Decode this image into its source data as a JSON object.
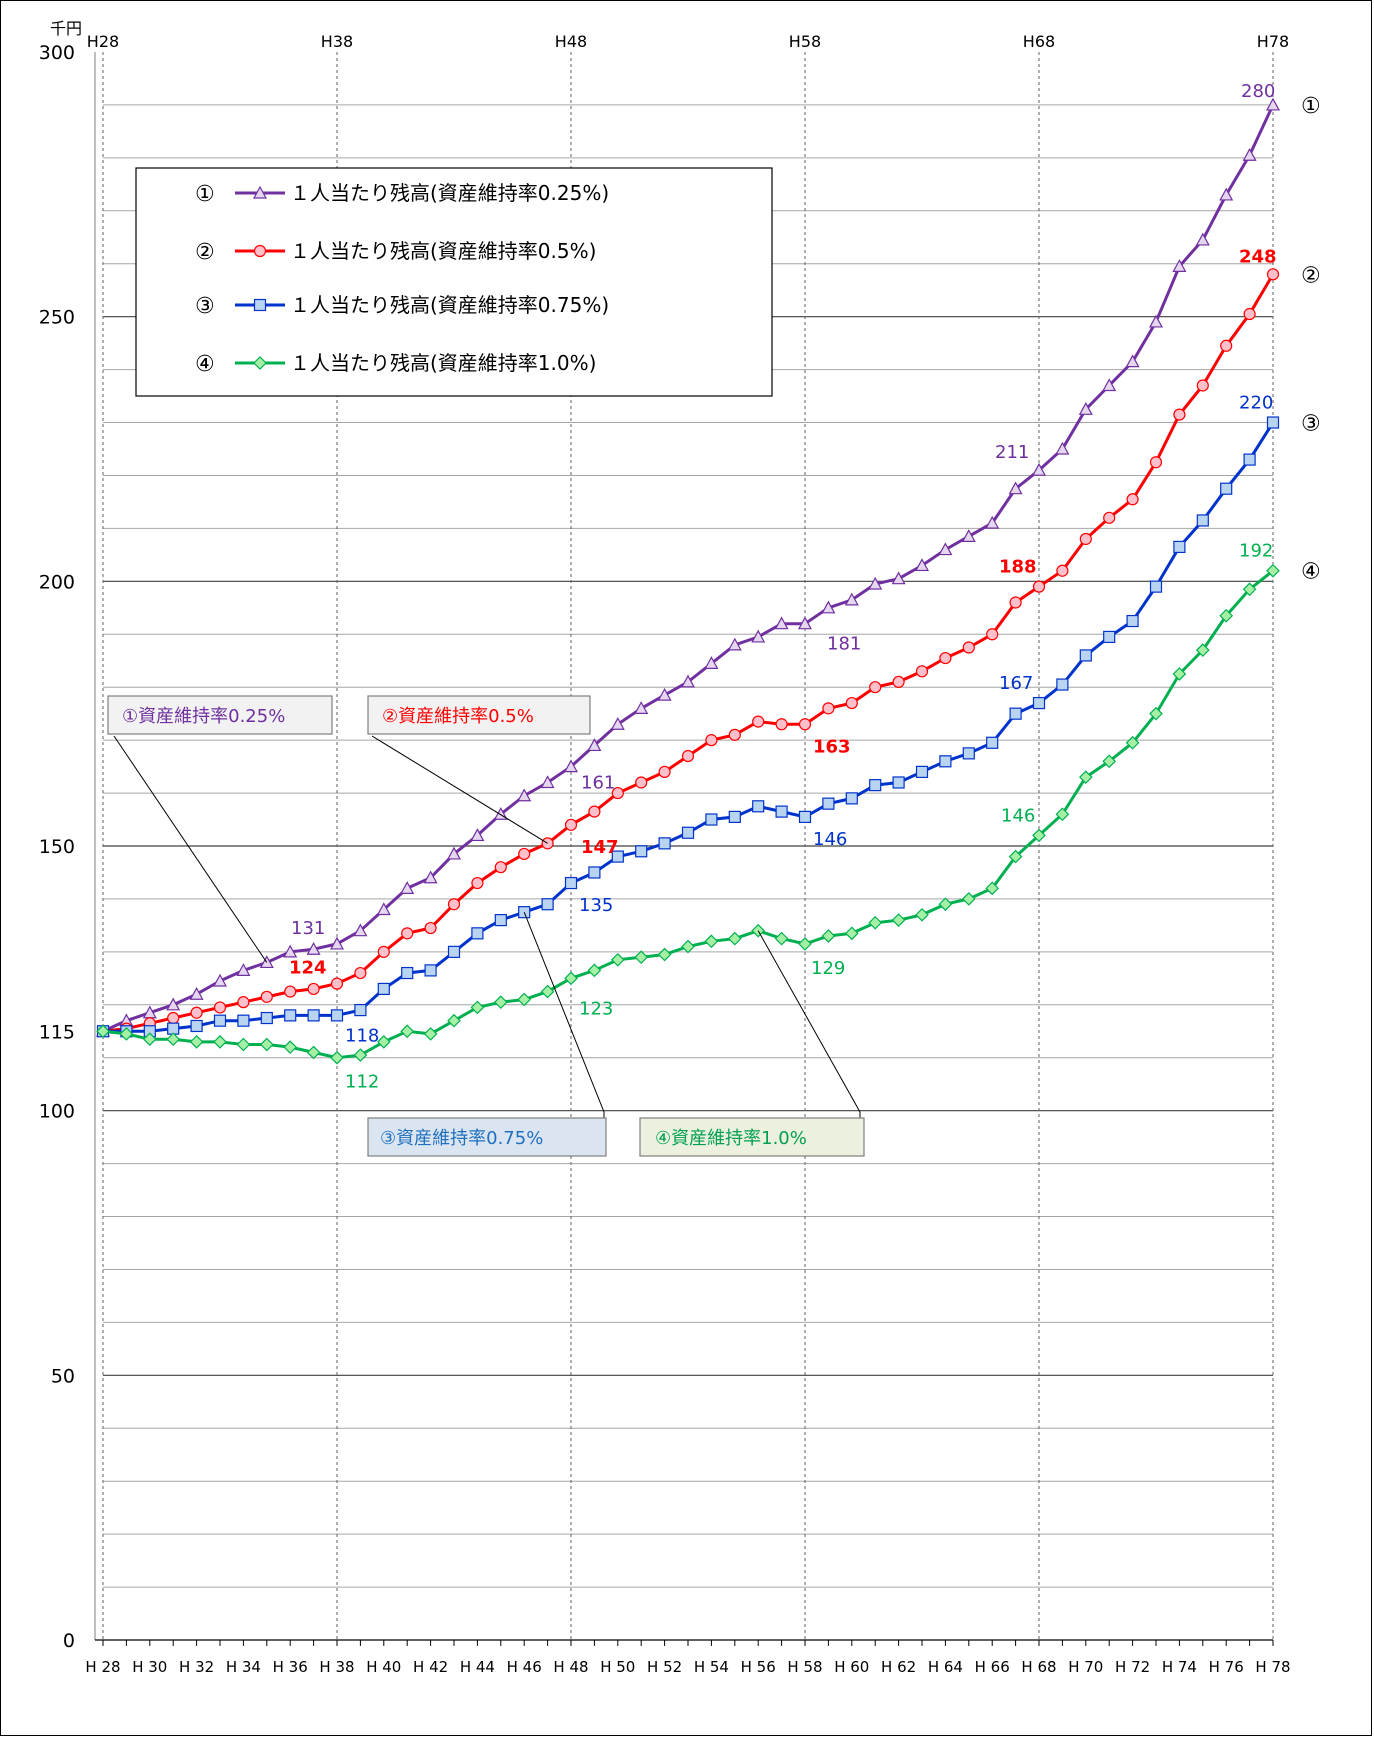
{
  "chart_data": {
    "type": "line",
    "unit_label": "千円",
    "ylim": [
      0,
      300
    ],
    "yticks": [
      0,
      50,
      100,
      150,
      200,
      250,
      300
    ],
    "ytick_extra": 115,
    "x": [
      "H28",
      "H29",
      "H30",
      "H31",
      "H32",
      "H33",
      "H34",
      "H35",
      "H36",
      "H37",
      "H38",
      "H39",
      "H40",
      "H41",
      "H42",
      "H43",
      "H44",
      "H45",
      "H46",
      "H47",
      "H48",
      "H49",
      "H50",
      "H51",
      "H52",
      "H53",
      "H54",
      "H55",
      "H56",
      "H57",
      "H58",
      "H59",
      "H60",
      "H61",
      "H62",
      "H63",
      "H64",
      "H65",
      "H66",
      "H67",
      "H68",
      "H69",
      "H70",
      "H71",
      "H72",
      "H73",
      "H74",
      "H75",
      "H76",
      "H77",
      "H78"
    ],
    "bottom_tick_labels": [
      "H 28",
      "H 30",
      "H 32",
      "H 34",
      "H 36",
      "H 38",
      "H 40",
      "H 42",
      "H 44",
      "H 46",
      "H 48",
      "H 50",
      "H 52",
      "H 54",
      "H 56",
      "H 58",
      "H 60",
      "H 62",
      "H 64",
      "H 66",
      "H 68",
      "H 70",
      "H 72",
      "H 74",
      "H 76",
      "H 78"
    ],
    "top_tick_labels": [
      "H28",
      "H38",
      "H48",
      "H58",
      "H68",
      "H78"
    ],
    "grid": true,
    "legend_position": "top-left",
    "series": [
      {
        "name": "１人当たり残高(資産維持率0.25%)",
        "marker_label": "①",
        "color": "#7030a0",
        "fill": "#e6d7f0",
        "marker": "triangle",
        "values": [
          115,
          117,
          118.5,
          120,
          122,
          124.5,
          126.5,
          128,
          130,
          130.5,
          131.5,
          134,
          138,
          142,
          144,
          148.5,
          152,
          156,
          159.5,
          162,
          165,
          169,
          173,
          176,
          178.5,
          181,
          184.5,
          188,
          189.5,
          192,
          192,
          195,
          196.5,
          199.5,
          200.5,
          203,
          206,
          208.5,
          211,
          217.5,
          221,
          225,
          232.5,
          237,
          241.5,
          249,
          259.5,
          264.5,
          273,
          280.5,
          290
        ]
      },
      {
        "name": "１人当たり残高(資産維持率0.5%)",
        "marker_label": "②",
        "color": "#ff0000",
        "fill": "#ffc0cc",
        "marker": "circle",
        "values": [
          115,
          115.5,
          116.5,
          117.5,
          118.5,
          119.5,
          120.5,
          121.5,
          122.5,
          123,
          124,
          126,
          130,
          133.5,
          134.5,
          139,
          143,
          146,
          148.5,
          150.5,
          154,
          156.5,
          160,
          162,
          164,
          167,
          170,
          171,
          173.5,
          173,
          173,
          176,
          177,
          180,
          181,
          183,
          185.5,
          187.5,
          190,
          196,
          199,
          202,
          208,
          212,
          215.5,
          222.5,
          231.5,
          237,
          244.5,
          250.5,
          258
        ]
      },
      {
        "name": "１人当たり残高(資産維持率0.75%)",
        "marker_label": "③",
        "color": "#0033cc",
        "fill": "#b9d4f0",
        "marker": "square",
        "values": [
          115,
          115,
          115,
          115.5,
          116,
          117,
          117,
          117.5,
          118,
          118,
          118,
          119,
          123,
          126,
          126.5,
          130,
          133.5,
          136,
          137.5,
          139,
          143,
          145,
          148,
          149,
          150.5,
          152.5,
          155,
          155.5,
          157.5,
          156.5,
          155.5,
          158,
          159,
          161.5,
          162,
          164,
          166,
          167.5,
          169.5,
          175,
          177,
          180.5,
          186,
          189.5,
          192.5,
          199,
          206.5,
          211.5,
          217.5,
          223,
          230
        ]
      },
      {
        "name": "１人当たり残高(資産維持率1.0%)",
        "marker_label": "④",
        "color": "#00b050",
        "fill": "#a6f0a6",
        "marker": "diamond",
        "values": [
          115,
          114.5,
          113.5,
          113.5,
          113,
          113,
          112.5,
          112.5,
          112,
          111,
          110,
          110.5,
          113,
          115,
          114.5,
          117,
          119.5,
          120.5,
          121,
          122.5,
          125,
          126.5,
          128.5,
          129,
          129.5,
          131,
          132,
          132.5,
          134,
          132.5,
          131.5,
          133,
          133.5,
          135.5,
          136,
          137,
          139,
          140,
          142,
          148,
          152,
          156,
          163,
          166,
          169.5,
          175,
          182.5,
          187,
          193.5,
          198.5,
          202
        ]
      }
    ],
    "data_labels": [
      {
        "text": "280",
        "series": 0
      },
      {
        "text": "211",
        "series": 0
      },
      {
        "text": "181",
        "series": 0
      },
      {
        "text": "161",
        "series": 0
      },
      {
        "text": "131",
        "series": 0
      },
      {
        "text": "248",
        "series": 1
      },
      {
        "text": "188",
        "series": 1
      },
      {
        "text": "163",
        "series": 1
      },
      {
        "text": "147",
        "series": 1
      },
      {
        "text": "124",
        "series": 1
      },
      {
        "text": "220",
        "series": 2
      },
      {
        "text": "167",
        "series": 2
      },
      {
        "text": "146",
        "series": 2
      },
      {
        "text": "135",
        "series": 2
      },
      {
        "text": "118",
        "series": 2
      },
      {
        "text": "192",
        "series": 3
      },
      {
        "text": "146",
        "series": 3
      },
      {
        "text": "129",
        "series": 3
      },
      {
        "text": "123",
        "series": 3
      },
      {
        "text": "112",
        "series": 3
      }
    ],
    "callouts": [
      {
        "text": "①資産維持率0.25%",
        "color": "#7030a0",
        "bg": "#f2f2f2",
        "border": "#7f7f7f"
      },
      {
        "text": "②資産維持率0.5%",
        "color": "#ff0000",
        "bg": "#f2f2f2",
        "border": "#7f7f7f"
      },
      {
        "text": "③資産維持率0.75%",
        "color": "#1f6fbf",
        "bg": "#dbe5f1",
        "border": "#7f7f7f"
      },
      {
        "text": "④資産維持率1.0%",
        "color": "#00a050",
        "bg": "#ebf1de",
        "border": "#7f7f7f"
      }
    ]
  }
}
